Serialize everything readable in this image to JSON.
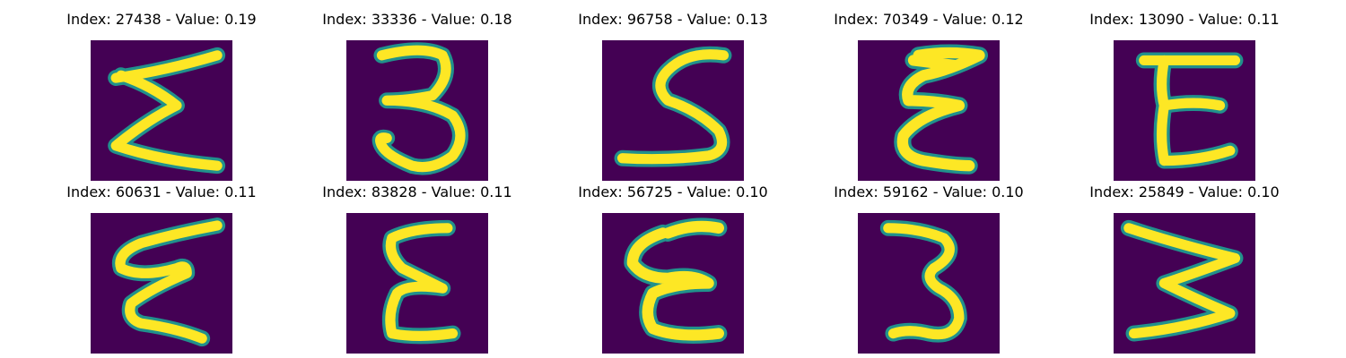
{
  "figure": {
    "colors": {
      "background": "#440154",
      "mid": "#21918c",
      "stroke": "#fde725"
    },
    "panels": [
      {
        "index": "27438",
        "value": "0.19",
        "title": "Index: 27438 - Value: 0.19",
        "glyph": "Ɛ"
      },
      {
        "index": "33336",
        "value": "0.18",
        "title": "Index: 33336 - Value: 0.18",
        "glyph": "3"
      },
      {
        "index": "96758",
        "value": "0.13",
        "title": "Index: 96758 - Value: 0.13",
        "glyph": "S"
      },
      {
        "index": "70349",
        "value": "0.12",
        "title": "Index: 70349 - Value: 0.12",
        "glyph": "Ɛ"
      },
      {
        "index": "13090",
        "value": "0.11",
        "title": "Index: 13090 - Value: 0.11",
        "glyph": "E"
      },
      {
        "index": "60631",
        "value": "0.11",
        "title": "Index: 60631 - Value: 0.11",
        "glyph": "Ɛ"
      },
      {
        "index": "83828",
        "value": "0.11",
        "title": "Index: 83828 - Value: 0.11",
        "glyph": "Ɛ"
      },
      {
        "index": "56725",
        "value": "0.10",
        "title": "Index: 56725 - Value: 0.10",
        "glyph": "Ɛ"
      },
      {
        "index": "59162",
        "value": "0.10",
        "title": "Index: 59162 - Value: 0.10",
        "glyph": "3"
      },
      {
        "index": "25849",
        "value": "0.10",
        "title": "Index: 25849 - Value: 0.10",
        "glyph": "W"
      }
    ]
  }
}
